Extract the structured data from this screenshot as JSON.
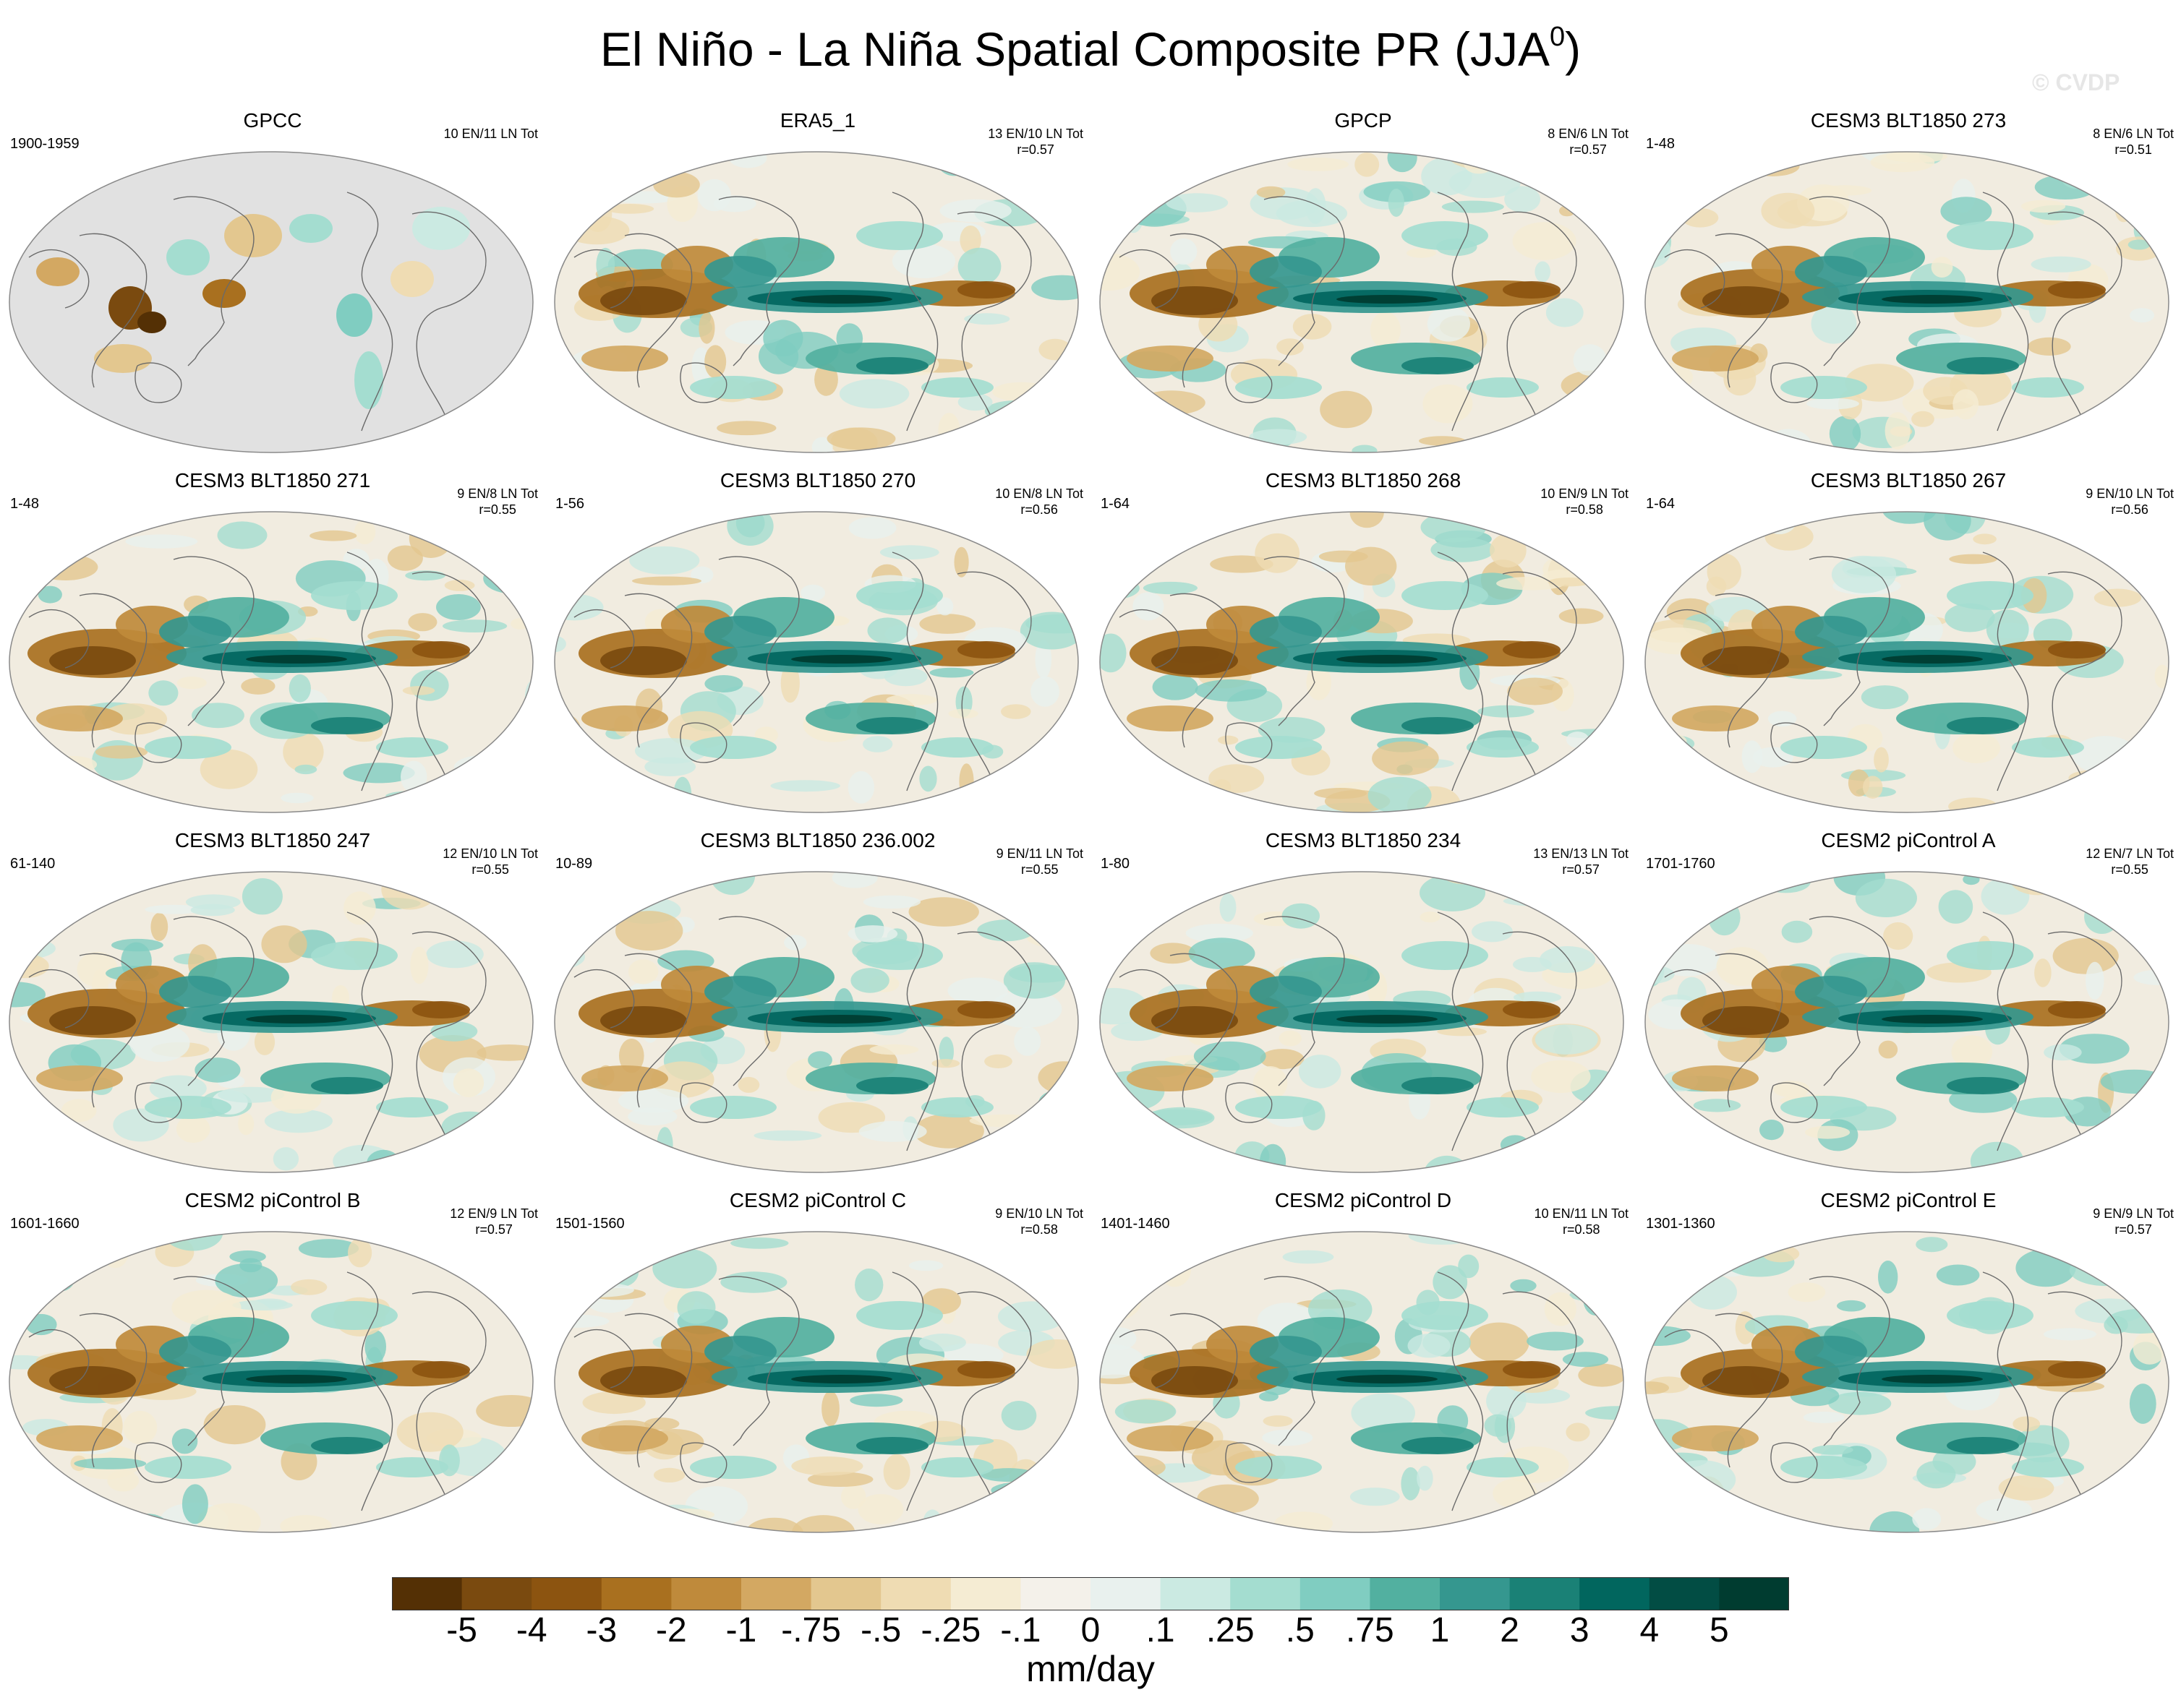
{
  "title": "El Niño - La Niña Spatial Composite PR (JJA",
  "title_superscript": "0",
  "title_close": ")",
  "watermark": "© CVDP",
  "panels": [
    {
      "title": "GPCC",
      "period": "1900-1959",
      "counts": "10 EN/11 LN Tot",
      "r": ""
    },
    {
      "title": "ERA5_1",
      "period": "",
      "counts": "13 EN/10 LN Tot",
      "r": "r=0.57"
    },
    {
      "title": "GPCP",
      "period": "",
      "counts": "8 EN/6 LN Tot",
      "r": "r=0.57"
    },
    {
      "title": "CESM3 BLT1850 273",
      "period": "1-48",
      "counts": "8 EN/6 LN Tot",
      "r": "r=0.51"
    },
    {
      "title": "CESM3 BLT1850 271",
      "period": "1-48",
      "counts": "9 EN/8 LN Tot",
      "r": "r=0.55"
    },
    {
      "title": "CESM3 BLT1850 270",
      "period": "1-56",
      "counts": "10 EN/8 LN Tot",
      "r": "r=0.56"
    },
    {
      "title": "CESM3 BLT1850 268",
      "period": "1-64",
      "counts": "10 EN/9 LN Tot",
      "r": "r=0.58"
    },
    {
      "title": "CESM3 BLT1850 267",
      "period": "1-64",
      "counts": "9 EN/10 LN Tot",
      "r": "r=0.56"
    },
    {
      "title": "CESM3 BLT1850 247",
      "period": "61-140",
      "counts": "12 EN/10 LN Tot",
      "r": "r=0.55"
    },
    {
      "title": "CESM3 BLT1850 236.002",
      "period": "10-89",
      "counts": "9 EN/11 LN Tot",
      "r": "r=0.55"
    },
    {
      "title": "CESM3 BLT1850 234",
      "period": "1-80",
      "counts": "13 EN/13 LN Tot",
      "r": "r=0.57"
    },
    {
      "title": "CESM2 piControl A",
      "period": "1701-1760",
      "counts": "12 EN/7 LN Tot",
      "r": "r=0.55"
    },
    {
      "title": "CESM2 piControl B",
      "period": "1601-1660",
      "counts": "12 EN/9 LN Tot",
      "r": "r=0.57"
    },
    {
      "title": "CESM2 piControl C",
      "period": "1501-1560",
      "counts": "9 EN/10 LN Tot",
      "r": "r=0.58"
    },
    {
      "title": "CESM2 piControl D",
      "period": "1401-1460",
      "counts": "10 EN/11 LN Tot",
      "r": "r=0.58"
    },
    {
      "title": "CESM2 piControl E",
      "period": "1301-1360",
      "counts": "9 EN/9 LN Tot",
      "r": "r=0.57"
    }
  ],
  "colorbar": {
    "label": "mm/day",
    "ticks": [
      "-5",
      "-4",
      "-3",
      "-2",
      "-1",
      "-.75",
      "-.5",
      "-.25",
      "-.1",
      "0",
      ".1",
      ".25",
      ".5",
      ".75",
      "1",
      "2",
      "3",
      "4",
      "5"
    ],
    "colors": [
      "#543005",
      "#7a4a0f",
      "#8c5410",
      "#a9701f",
      "#bf8a3b",
      "#d3a862",
      "#e3c78f",
      "#efdcb3",
      "#f5ecd3",
      "#f4f1ea",
      "#e9f1ee",
      "#cbeae2",
      "#a4ddd0",
      "#80cdc1",
      "#52b0a0",
      "#35978f",
      "#1a8176",
      "#01665e",
      "#024d44",
      "#003c30"
    ]
  }
}
